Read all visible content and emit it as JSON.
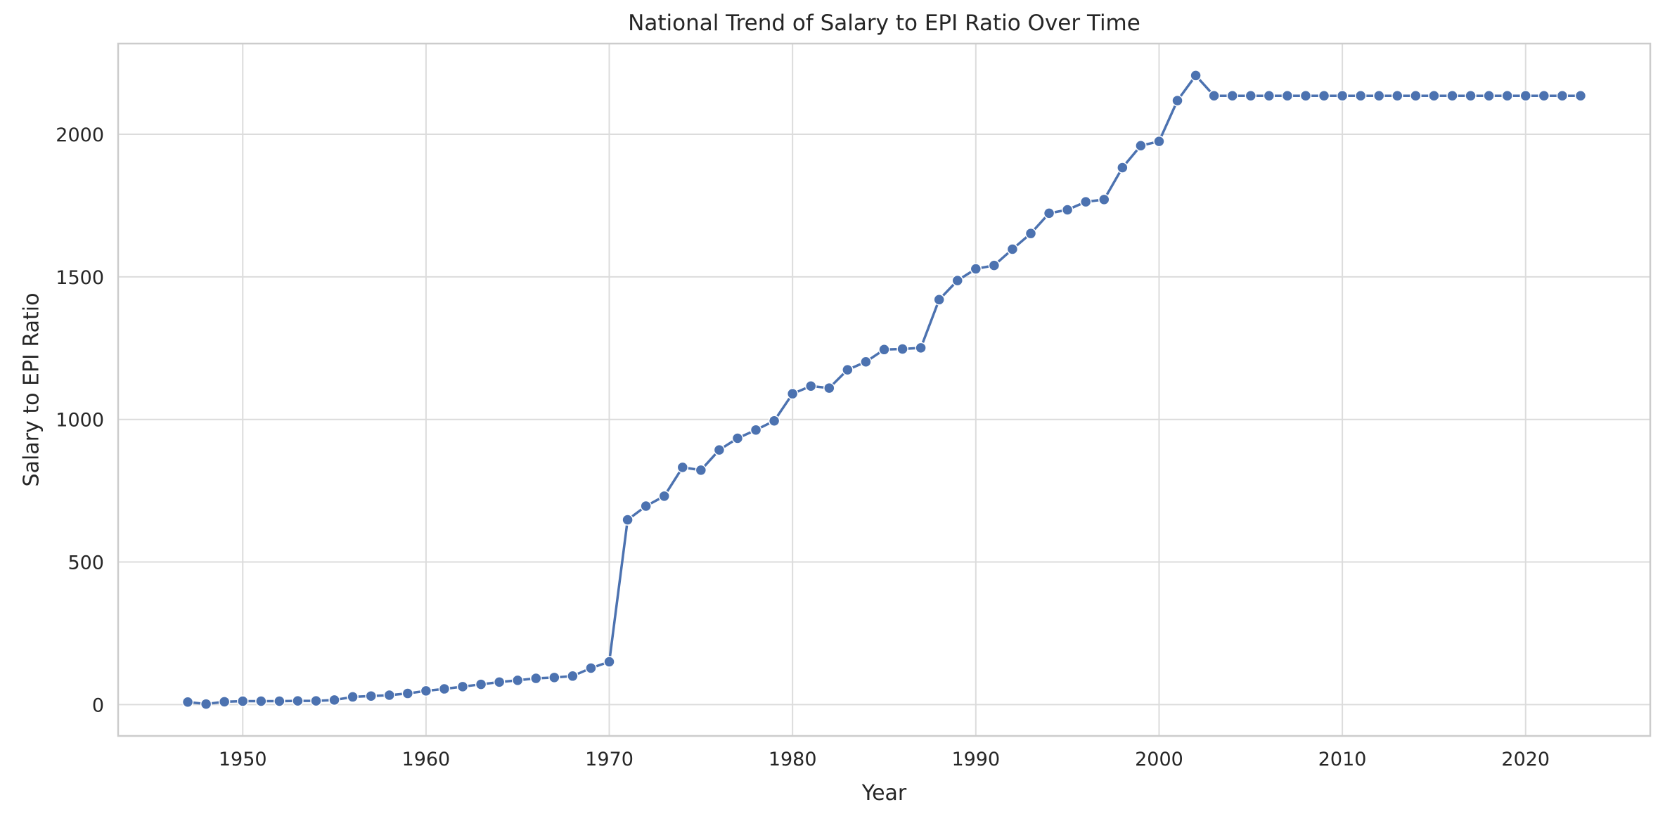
{
  "chart_data": {
    "type": "line",
    "title": "National Trend of Salary to EPI Ratio Over Time",
    "xlabel": "Year",
    "ylabel": "Salary to EPI Ratio",
    "xlim": [
      1943.2,
      2026.8
    ],
    "ylim": [
      -110,
      2318
    ],
    "xticks": [
      1950,
      1960,
      1970,
      1980,
      1990,
      2000,
      2010,
      2020
    ],
    "yticks": [
      0,
      500,
      1000,
      1500,
      2000
    ],
    "grid": true,
    "marker": "circle",
    "color": "#4c72b0",
    "series": [
      {
        "x": [
          1947,
          1948,
          1949,
          1950,
          1951,
          1952,
          1953,
          1954,
          1955,
          1956,
          1957,
          1958,
          1959,
          1960,
          1961,
          1962,
          1963,
          1964,
          1965,
          1966,
          1967,
          1968,
          1969,
          1970,
          1971,
          1972,
          1973,
          1974,
          1975,
          1976,
          1977,
          1978,
          1979,
          1980,
          1981,
          1982,
          1983,
          1984,
          1985,
          1986,
          1987,
          1988,
          1989,
          1990,
          1991,
          1992,
          1993,
          1994,
          1995,
          1996,
          1997,
          1998,
          1999,
          2000,
          2001,
          2002,
          2003,
          2004,
          2005,
          2006,
          2007,
          2008,
          2009,
          2010,
          2011,
          2012,
          2013,
          2014,
          2015,
          2016,
          2017,
          2018,
          2019,
          2020,
          2021,
          2022,
          2023
        ],
        "values": [
          9,
          2,
          10,
          12,
          12,
          12,
          13,
          13,
          16,
          27,
          30,
          33,
          39,
          48,
          55,
          63,
          71,
          79,
          85,
          92,
          95,
          100,
          128,
          150,
          648,
          696,
          731,
          832,
          822,
          893,
          934,
          963,
          995,
          1090,
          1117,
          1110,
          1174,
          1202,
          1245,
          1247,
          1251,
          1420,
          1487,
          1528,
          1540,
          1597,
          1652,
          1723,
          1735,
          1763,
          1771,
          1883,
          1960,
          1975,
          2118,
          2206,
          2135,
          2135,
          2135,
          2135,
          2135,
          2135,
          2135,
          2135,
          2135,
          2135,
          2135,
          2135,
          2135,
          2135,
          2135,
          2135,
          2135,
          2135,
          2135,
          2135,
          2135
        ]
      }
    ]
  }
}
